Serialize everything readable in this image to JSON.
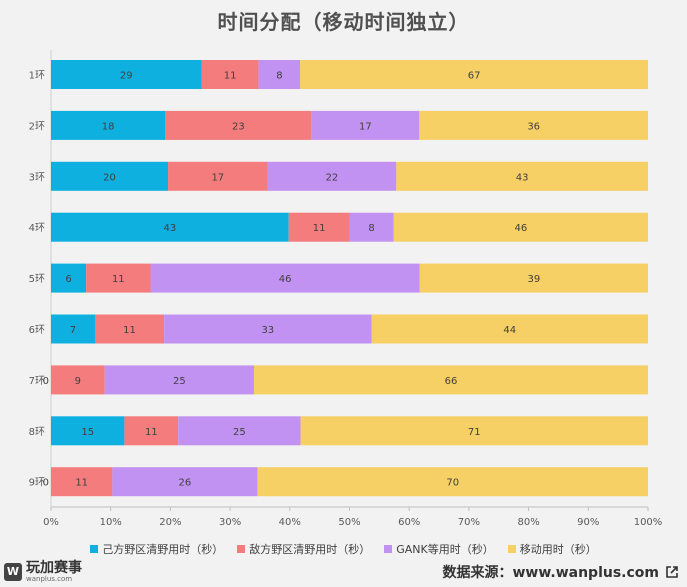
{
  "chart_data": {
    "type": "bar",
    "orientation": "horizontal",
    "stacking": "percent",
    "title": "时间分配（移动时间独立）",
    "categories": [
      "1环",
      "2环",
      "3环",
      "4环",
      "5环",
      "6环",
      "7环",
      "8环",
      "9环"
    ],
    "series": [
      {
        "name": "己方野区清野用时（秒）",
        "color": "#0eb0e0",
        "values": [
          29,
          18,
          20,
          43,
          6,
          7,
          0,
          15,
          0
        ]
      },
      {
        "name": "敌方野区清野用时（秒）",
        "color": "#f47c7c",
        "values": [
          11,
          23,
          17,
          11,
          11,
          11,
          9,
          11,
          11
        ]
      },
      {
        "name": "GANK等用时（秒）",
        "color": "#c292f2",
        "values": [
          8,
          17,
          22,
          8,
          46,
          33,
          25,
          25,
          26
        ]
      },
      {
        "name": "移动用时（秒）",
        "color": "#f6cf65",
        "values": [
          67,
          36,
          43,
          46,
          39,
          44,
          66,
          71,
          70
        ]
      }
    ],
    "x_ticks": [
      "0%",
      "10%",
      "20%",
      "30%",
      "40%",
      "50%",
      "60%",
      "70%",
      "80%",
      "90%",
      "100%"
    ],
    "xlim": [
      0,
      100
    ],
    "grid": false,
    "legend_position": "bottom"
  },
  "footer": {
    "brand_name": "玩加赛事",
    "brand_url": "wanplus.com",
    "brand_logo": "W",
    "source_text": "数据来源：www.wanplus.com",
    "icons": {
      "logo": "wanplus-logo-icon",
      "external": "external-link-icon"
    }
  }
}
